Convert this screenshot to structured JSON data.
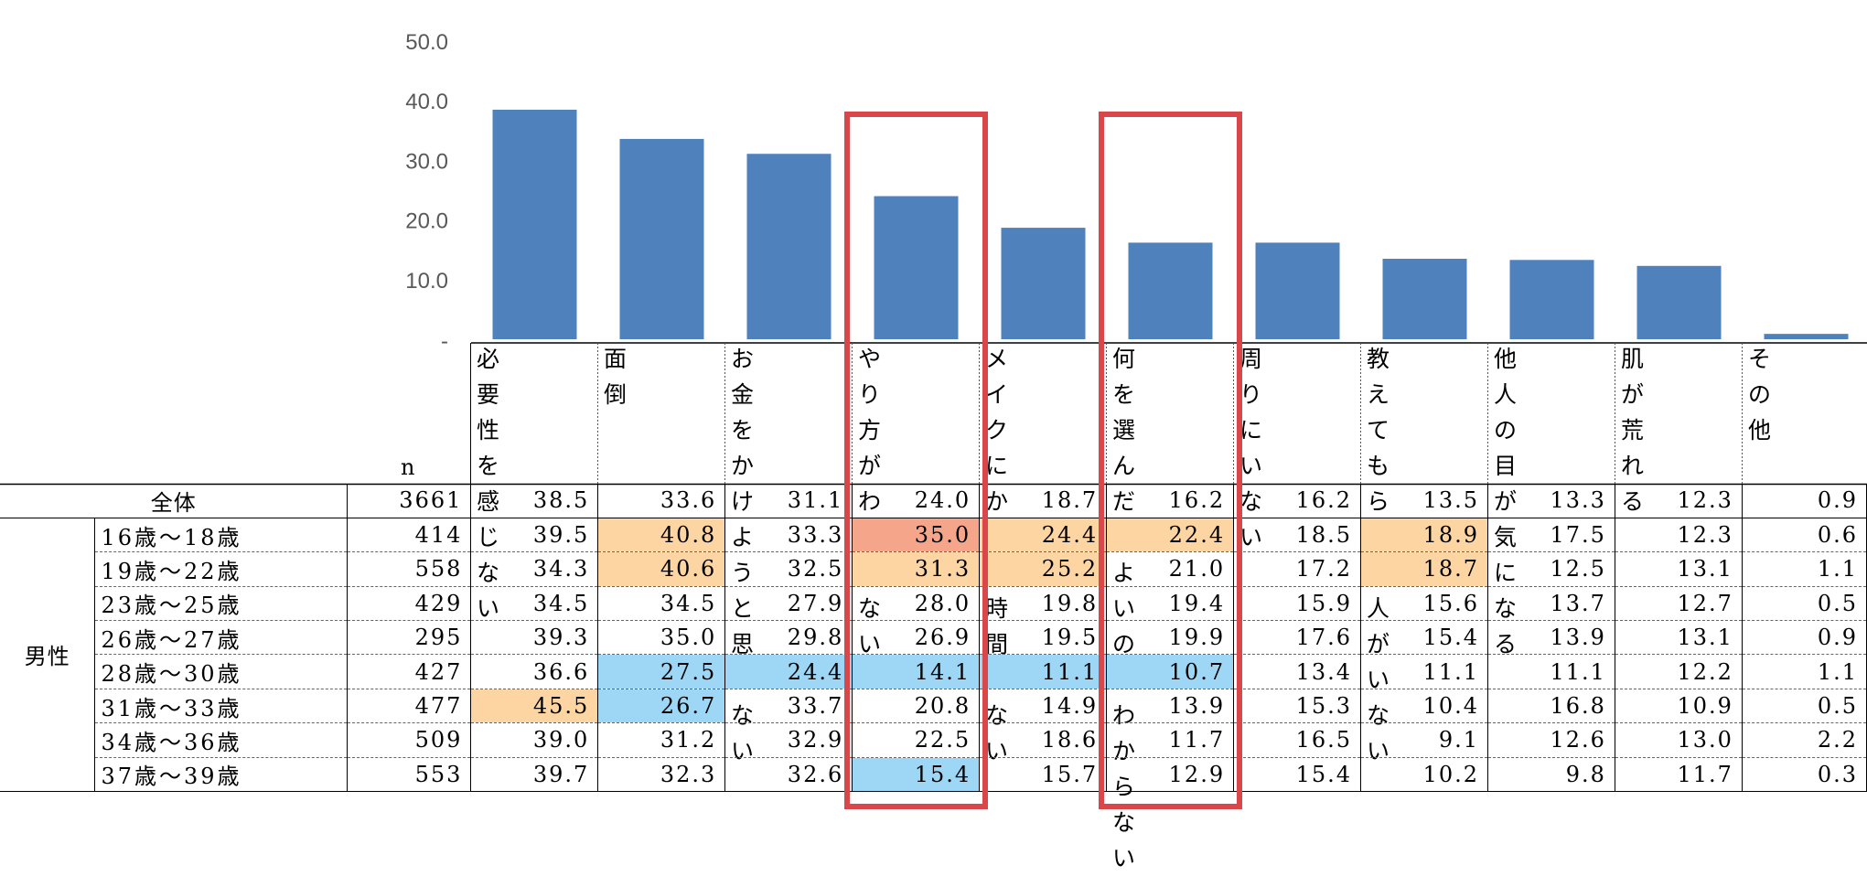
{
  "chart_data": {
    "type": "bar",
    "categories": [
      "必要性を\n感じない",
      "面倒",
      "お金をか\nけようと思\nわない",
      "やり方が\nわからな\nい",
      "メイクにか\nける時間\nがない",
      "何を選ん\nだらよい\nのかわか\nらない",
      "周りにい\nない",
      "教えてもら\nえる人がい\nない",
      "他人の目\nが気にな\nる",
      "肌が荒れ\nる",
      "その他"
    ],
    "values": [
      38.5,
      33.6,
      31.1,
      24.0,
      18.7,
      16.2,
      16.2,
      13.5,
      13.3,
      12.3,
      0.9
    ],
    "yticks": [
      "-",
      "10.0",
      "20.0",
      "30.0",
      "40.0",
      "50.0"
    ],
    "ylim": [
      0,
      50
    ],
    "bar_color": "#4F81BD",
    "highlight_categories": [
      3,
      5
    ],
    "highlight_color": "#D9474B"
  },
  "table": {
    "n_header": "n",
    "group_label": "男性",
    "total": {
      "label": "全体",
      "n": "3661",
      "values": [
        "38.5",
        "33.6",
        "31.1",
        "24.0",
        "18.7",
        "16.2",
        "16.2",
        "13.5",
        "13.3",
        "12.3",
        "0.9"
      ]
    },
    "rows": [
      {
        "label": "16歳〜18歳",
        "n": "414",
        "values": [
          "39.5",
          "40.8",
          "33.3",
          "35.0",
          "24.4",
          "22.4",
          "18.5",
          "18.9",
          "17.5",
          "12.3",
          "0.6"
        ],
        "highlights": [
          "",
          "orange",
          "",
          "salmon",
          "orange",
          "orange",
          "",
          "orange",
          "",
          "",
          ""
        ]
      },
      {
        "label": "19歳〜22歳",
        "n": "558",
        "values": [
          "34.3",
          "40.6",
          "32.5",
          "31.3",
          "25.2",
          "21.0",
          "17.2",
          "18.7",
          "12.5",
          "13.1",
          "1.1"
        ],
        "highlights": [
          "",
          "orange",
          "",
          "orange",
          "orange",
          "",
          "",
          "orange",
          "",
          "",
          ""
        ]
      },
      {
        "label": "23歳〜25歳",
        "n": "429",
        "values": [
          "34.5",
          "34.5",
          "27.9",
          "28.0",
          "19.8",
          "19.4",
          "15.9",
          "15.6",
          "13.7",
          "12.7",
          "0.5"
        ],
        "highlights": [
          "",
          "",
          "",
          "",
          "",
          "",
          "",
          "",
          "",
          "",
          ""
        ]
      },
      {
        "label": "26歳〜27歳",
        "n": "295",
        "values": [
          "39.3",
          "35.0",
          "29.8",
          "26.9",
          "19.5",
          "19.9",
          "17.6",
          "15.4",
          "13.9",
          "13.1",
          "0.9"
        ],
        "highlights": [
          "",
          "",
          "",
          "",
          "",
          "",
          "",
          "",
          "",
          "",
          ""
        ]
      },
      {
        "label": "28歳〜30歳",
        "n": "427",
        "values": [
          "36.6",
          "27.5",
          "24.4",
          "14.1",
          "11.1",
          "10.7",
          "13.4",
          "11.1",
          "11.1",
          "12.2",
          "1.1"
        ],
        "highlights": [
          "",
          "blue",
          "blue",
          "blue",
          "blue",
          "blue",
          "",
          "",
          "",
          "",
          ""
        ]
      },
      {
        "label": "31歳〜33歳",
        "n": "477",
        "values": [
          "45.5",
          "26.7",
          "33.7",
          "20.8",
          "14.9",
          "13.9",
          "15.3",
          "10.4",
          "16.8",
          "10.9",
          "0.5"
        ],
        "highlights": [
          "orange",
          "blue",
          "",
          "",
          "",
          "",
          "",
          "",
          "",
          "",
          ""
        ]
      },
      {
        "label": "34歳〜36歳",
        "n": "509",
        "values": [
          "39.0",
          "31.2",
          "32.9",
          "22.5",
          "18.6",
          "11.7",
          "16.5",
          "9.1",
          "12.6",
          "13.0",
          "2.2"
        ],
        "highlights": [
          "",
          "",
          "",
          "",
          "",
          "",
          "",
          "",
          "",
          "",
          ""
        ]
      },
      {
        "label": "37歳〜39歳",
        "n": "553",
        "values": [
          "39.7",
          "32.3",
          "32.6",
          "15.4",
          "15.7",
          "12.9",
          "15.4",
          "10.2",
          "9.8",
          "11.7",
          "0.3"
        ],
        "highlights": [
          "",
          "",
          "",
          "blue",
          "",
          "",
          "",
          "",
          "",
          "",
          ""
        ]
      }
    ]
  }
}
